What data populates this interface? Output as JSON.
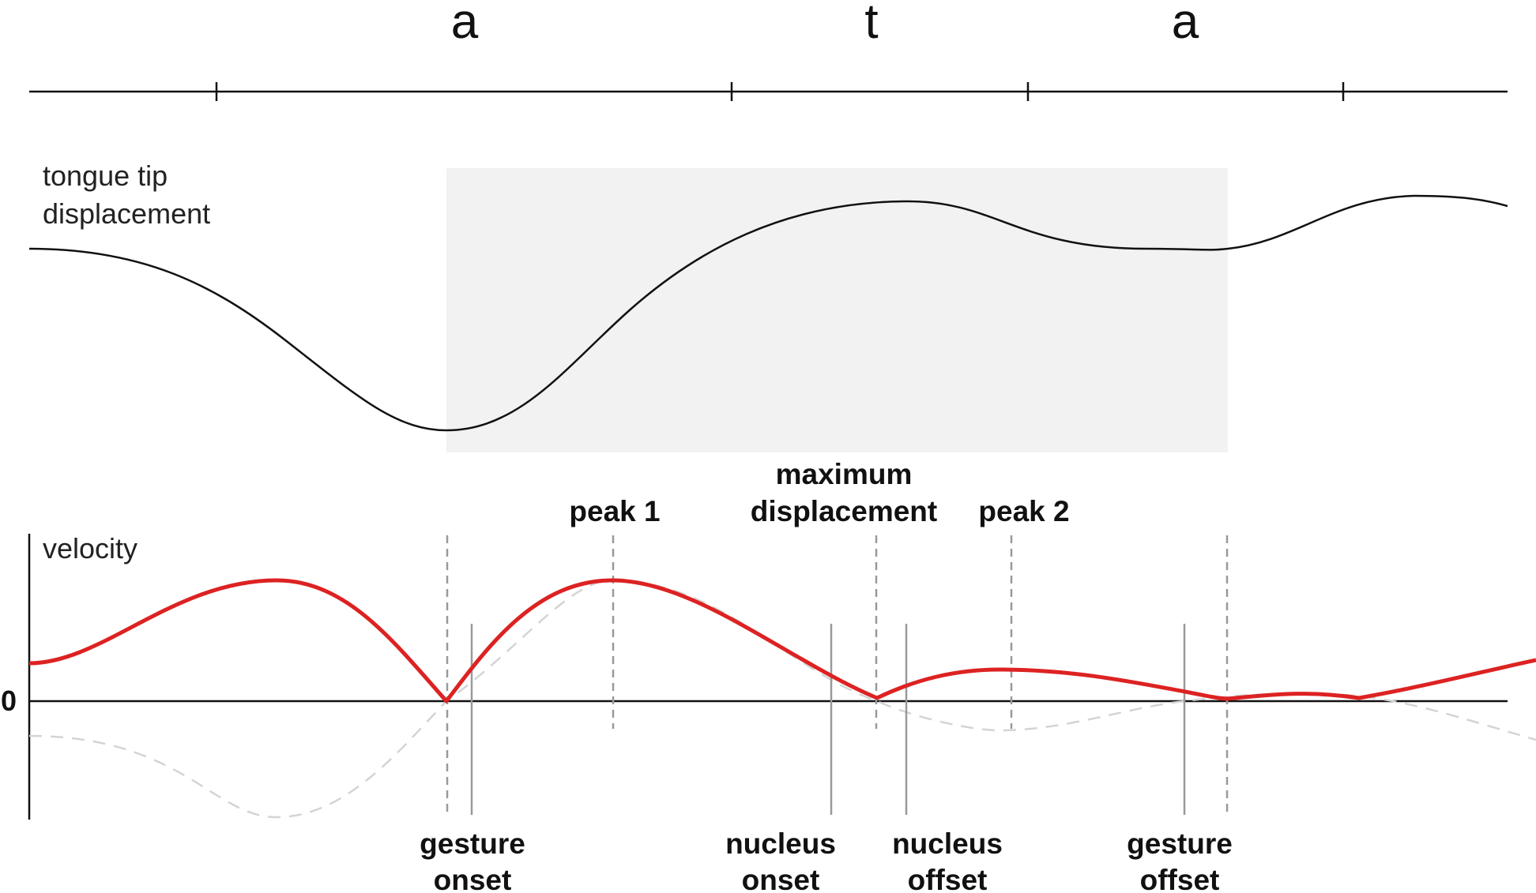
{
  "segments": [
    "a",
    "t",
    "a"
  ],
  "displacement_panel": {
    "label_line1": "tongue tip",
    "label_line2": "displacement"
  },
  "velocity_panel": {
    "label": "velocity",
    "zero_label": "0"
  },
  "annotations": {
    "peak1": "peak 1",
    "max_disp_line1": "maximum",
    "max_disp_line2": "displacement",
    "peak2": "peak 2",
    "gesture_onset_line1": "gesture",
    "gesture_onset_line2": "onset",
    "nucleus_onset_line1": "nucleus",
    "nucleus_onset_line2": "onset",
    "nucleus_offset_line1": "nucleus",
    "nucleus_offset_line2": "offset",
    "gesture_offset_line1": "gesture",
    "gesture_offset_line2": "offset"
  },
  "colors": {
    "velocity_curve": "#dd2222",
    "displacement_curve": "#111111",
    "gesture_region": "#f2f2f2",
    "signed_velocity": "#d4d4d4",
    "landmark_lines": "#999999"
  }
}
